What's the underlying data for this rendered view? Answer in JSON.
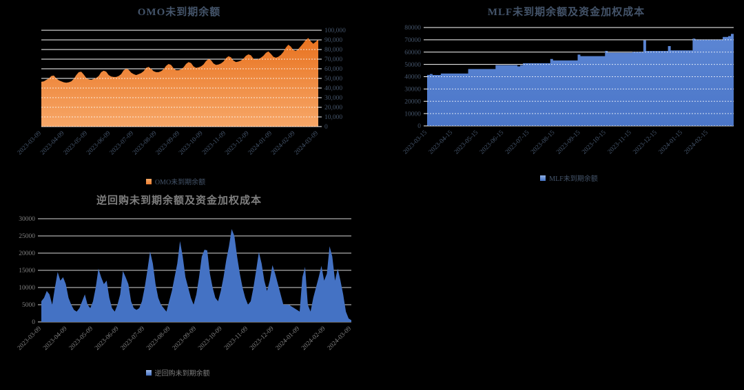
{
  "page": {
    "background": "#000000"
  },
  "chart_data": [
    {
      "type": "area",
      "title": "OMO未到期余额",
      "legend": "OMO未到期余额",
      "ylabel": "",
      "xlabel": "",
      "ylim": [
        0,
        100000
      ],
      "y_axis_side": "right",
      "grid": true,
      "legend_position": "bottom",
      "y_ticks": [
        "100,000",
        "90,000",
        "80,000",
        "70,000",
        "60,000",
        "50,000",
        "40,000",
        "30,000",
        "20,000",
        "10,000",
        "0"
      ],
      "x_labels": [
        "2023-03-09",
        "2023-04-09",
        "2023-05-09",
        "2023-06-09",
        "2023-07-09",
        "2023-08-09",
        "2023-09-09",
        "2023-10-09",
        "2023-11-09",
        "2023-12-09",
        "2024-01-09",
        "2024-02-09",
        "2024-03-09"
      ],
      "values": [
        46500,
        47000,
        48500,
        50000,
        52500,
        53000,
        50000,
        48000,
        47000,
        46000,
        45500,
        46000,
        47000,
        49500,
        53500,
        56500,
        57000,
        54000,
        50500,
        49000,
        48500,
        49500,
        50500,
        52500,
        56500,
        58000,
        57000,
        53500,
        52000,
        51500,
        51500,
        52500,
        54500,
        58500,
        60000,
        59000,
        56000,
        54500,
        53500,
        54500,
        55500,
        57500,
        61000,
        62000,
        60000,
        57500,
        56500,
        56500,
        57500,
        59500,
        63000,
        65000,
        64000,
        60500,
        58500,
        58500,
        59500,
        61500,
        65000,
        67000,
        66000,
        62500,
        61000,
        61500,
        62500,
        64500,
        68000,
        70000,
        69000,
        65500,
        64000,
        64500,
        65500,
        67500,
        71000,
        73000,
        72000,
        68500,
        67000,
        67500,
        68500,
        70500,
        73500,
        75000,
        74000,
        70500,
        69500,
        70000,
        71500,
        73500,
        76500,
        78000,
        75500,
        72500,
        71500,
        72500,
        74500,
        77500,
        82000,
        85000,
        83000,
        79500,
        78500,
        80500,
        83500,
        86500,
        90000,
        92000,
        88500,
        86000,
        88000,
        90500
      ],
      "colors": {
        "fill_top": "#E8721F",
        "fill_bottom": "#F7A768",
        "text": "#44546A",
        "grid": "#FFFFFF",
        "swatch_top": "#F5A965",
        "swatch_bottom": "#ED7D31"
      }
    },
    {
      "type": "bar",
      "title": "MLF未到期余额及资金加权成本",
      "legend": "MLF未到期余额",
      "ylabel": "",
      "xlabel": "",
      "ylim": [
        0,
        80000
      ],
      "y_axis_side": "left",
      "grid": true,
      "legend_position": "bottom",
      "y_ticks": [
        "80000",
        "70000",
        "60000",
        "50000",
        "40000",
        "30000",
        "20000",
        "10000",
        "0"
      ],
      "x_labels": [
        "2023-03-15",
        "2023-04-15",
        "2023-05-15",
        "2023-06-15",
        "2023-07-15",
        "2023-08-15",
        "2023-09-15",
        "2023-10-15",
        "2023-11-15",
        "2023-12-15",
        "2024-01-15",
        "2024-02-15"
      ],
      "values": [
        41500,
        42200,
        41400,
        41400,
        41400,
        42600,
        42600,
        42600,
        42600,
        42600,
        42600,
        42600,
        42600,
        42600,
        42600,
        46200,
        46200,
        46200,
        46200,
        46200,
        46200,
        46200,
        46200,
        46200,
        46200,
        49400,
        49400,
        49400,
        49400,
        49400,
        49400,
        49400,
        49400,
        48400,
        49400,
        51000,
        51000,
        51000,
        51000,
        51000,
        51000,
        51000,
        51000,
        51000,
        51000,
        54400,
        53200,
        53200,
        53200,
        53200,
        53200,
        53200,
        53200,
        53200,
        53200,
        58000,
        56700,
        56700,
        56700,
        56700,
        56700,
        56700,
        56700,
        56700,
        56700,
        61000,
        59500,
        59500,
        59500,
        59500,
        59500,
        59500,
        59500,
        59500,
        59500,
        60100,
        60100,
        60100,
        60100,
        69600,
        60900,
        60900,
        60900,
        60900,
        60900,
        60900,
        60900,
        60900,
        64900,
        61400,
        61400,
        61400,
        61400,
        61400,
        61400,
        61400,
        61400,
        71000,
        70000,
        70000,
        70000,
        70000,
        70000,
        70000,
        70000,
        70000,
        70000,
        70000,
        72300,
        72300,
        73000,
        74800,
        73000
      ],
      "colors": {
        "fill_top": "#5C86D4",
        "fill_bottom": "#4B76C8",
        "text": "#44546A",
        "grid": "#FFFFFF",
        "swatch_top": "#8FB0E4",
        "swatch_bottom": "#4472C4"
      }
    },
    {
      "type": "area",
      "title": "逆回购未到期余额及资金加权成本",
      "legend": "逆回购未到期余额",
      "ylabel": "",
      "xlabel": "",
      "ylim": [
        0,
        30000
      ],
      "y_axis_side": "left",
      "grid": true,
      "legend_position": "bottom",
      "y_ticks": [
        "30000",
        "25000",
        "20000",
        "15000",
        "10000",
        "5000",
        "0"
      ],
      "x_labels": [
        "2023-03-09",
        "2023-04-09",
        "2023-05-09",
        "2023-06-09",
        "2023-07-09",
        "2023-08-09",
        "2023-09-09",
        "2023-10-09",
        "2023-11-09",
        "2023-12-09",
        "2024-01-09",
        "2024-02-09",
        "2024-03-09"
      ],
      "values": [
        6000,
        7000,
        9000,
        8000,
        5000,
        10000,
        14500,
        12000,
        13000,
        11000,
        7000,
        5000,
        3500,
        3000,
        4000,
        6000,
        8000,
        5000,
        4000,
        6000,
        10000,
        15500,
        13000,
        11000,
        12000,
        7000,
        4000,
        3000,
        5000,
        8000,
        14800,
        13000,
        11000,
        6000,
        4000,
        3500,
        4000,
        6000,
        10000,
        15000,
        20500,
        17000,
        11000,
        7000,
        5000,
        4000,
        3000,
        6000,
        9000,
        13000,
        17000,
        23500,
        19000,
        13000,
        10000,
        7000,
        5000,
        8000,
        13000,
        19000,
        21000,
        20800,
        14000,
        10000,
        7000,
        6000,
        9000,
        13000,
        18000,
        22000,
        27000,
        25000,
        19000,
        14000,
        10000,
        7000,
        5000,
        6000,
        10000,
        15000,
        20300,
        17000,
        12000,
        9000,
        12000,
        16500,
        14000,
        11000,
        8000,
        5000,
        5000,
        5000,
        4500,
        4000,
        3500,
        3000,
        13000,
        16000,
        5000,
        3000,
        7000,
        10000,
        13000,
        16300,
        12000,
        14000,
        22000,
        19000,
        12000,
        15500,
        12000,
        8000,
        3000,
        1000,
        500
      ],
      "colors": {
        "fill_top": "#4472C4",
        "fill_bottom": "#4472C4",
        "text": "#7F7F7F",
        "grid": "#D9D9D9",
        "swatch_top": "#9DB7E8",
        "swatch_bottom": "#4472C4"
      }
    }
  ]
}
